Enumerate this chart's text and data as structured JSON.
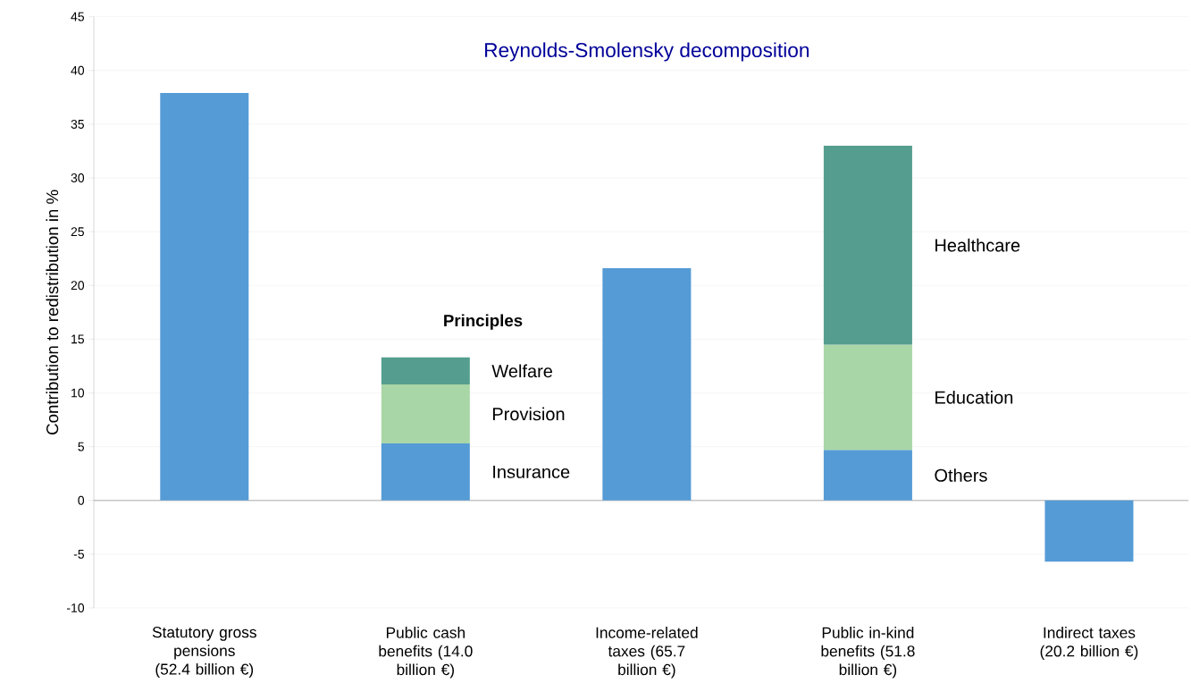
{
  "chart_data": {
    "type": "bar",
    "stacked": true,
    "title": "Reynolds-Smolensky decomposition",
    "ylabel": "Contribution to redistribution in %",
    "categories": [
      "Statutory gross pensions (52.4 billion €)",
      "Public cash benefits (14.0 billion €)",
      "Income-related taxes (65.7 billion €)",
      "Public in-kind benefits (51.8 billion €)",
      "Indirect taxes (20.2 billion €)"
    ],
    "series": [
      {
        "color": "#559bd6",
        "values": [
          37.9,
          5.3,
          21.6,
          4.7,
          -5.7
        ]
      },
      {
        "color": "#a9d6a7",
        "values": [
          null,
          5.5,
          null,
          9.8,
          null
        ]
      },
      {
        "color": "#559e8f",
        "values": [
          null,
          2.5,
          null,
          18.5,
          null
        ]
      }
    ],
    "ylim": [
      -10,
      45
    ],
    "yticks": [
      -10,
      -5,
      0,
      5,
      10,
      15,
      20,
      25,
      30,
      35,
      40,
      45
    ],
    "grid": "y",
    "annotations": [
      "Principles",
      "Insurance",
      "Provision",
      "Welfare",
      "Others",
      "Education",
      "Healthcare"
    ]
  }
}
